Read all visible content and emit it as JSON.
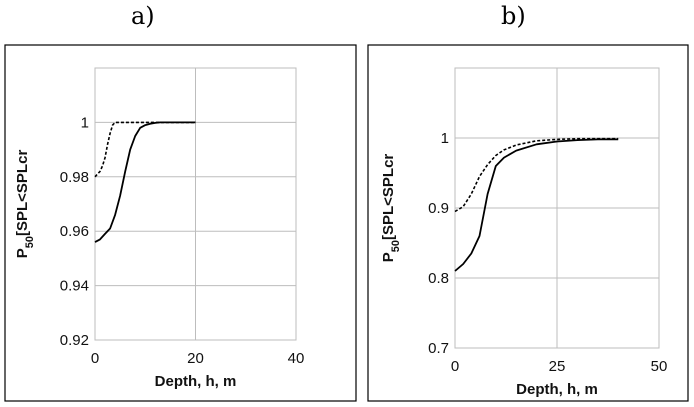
{
  "panels": [
    {
      "label": "a)"
    },
    {
      "label": "b)"
    }
  ],
  "chart_data": [
    {
      "type": "line",
      "xlabel": "Depth, h, m",
      "ylabel_prefix": "P",
      "ylabel_sub": "50",
      "ylabel_rest": "[SPL<SPLcr",
      "xlim": [
        0,
        40
      ],
      "ylim": [
        0.92,
        1.02
      ],
      "xticks": [
        0,
        20,
        40
      ],
      "yticks": [
        0.92,
        0.94,
        0.96,
        0.98,
        1
      ],
      "ytick_labels": [
        "0.92",
        "0.94",
        "0.96",
        "0.98",
        "1"
      ],
      "grid": true,
      "series": [
        {
          "style": "solid",
          "color": "#000000",
          "x": [
            0,
            1,
            2,
            3,
            4,
            5,
            6,
            7,
            8,
            9,
            10,
            11,
            12,
            13,
            14,
            15,
            16,
            17,
            18,
            19,
            20
          ],
          "y": [
            0.956,
            0.957,
            0.959,
            0.961,
            0.966,
            0.973,
            0.982,
            0.99,
            0.995,
            0.998,
            0.999,
            0.9995,
            0.9998,
            1.0,
            1.0,
            1.0,
            1.0,
            1.0,
            1.0,
            1.0,
            1.0
          ]
        },
        {
          "style": "dashed",
          "color": "#000000",
          "x": [
            0,
            0.5,
            1,
            1.5,
            2,
            2.5,
            3,
            3.5,
            4,
            5,
            6,
            8,
            10,
            12,
            14,
            16,
            18,
            20
          ],
          "y": [
            0.98,
            0.981,
            0.982,
            0.984,
            0.987,
            0.992,
            0.996,
            0.999,
            1.0,
            1.0,
            1.0,
            1.0,
            1.0,
            1.0,
            1.0,
            1.0,
            1.0,
            1.0
          ]
        }
      ]
    },
    {
      "type": "line",
      "xlabel": "Depth, h, m",
      "ylabel_prefix": "P",
      "ylabel_sub": "50",
      "ylabel_rest": "[SPL<SPLcr",
      "xlim": [
        0,
        50
      ],
      "ylim": [
        0.7,
        1.1
      ],
      "xticks": [
        0,
        25,
        50
      ],
      "yticks": [
        0.7,
        0.8,
        0.9,
        1
      ],
      "ytick_labels": [
        "0.7",
        "0.8",
        "0.9",
        "1"
      ],
      "grid": true,
      "series": [
        {
          "style": "solid",
          "color": "#000000",
          "x": [
            0,
            2,
            4,
            6,
            8,
            10,
            12,
            15,
            20,
            25,
            30,
            35,
            40
          ],
          "y": [
            0.81,
            0.82,
            0.835,
            0.86,
            0.92,
            0.96,
            0.972,
            0.982,
            0.991,
            0.995,
            0.997,
            0.998,
            0.998
          ]
        },
        {
          "style": "dashed",
          "color": "#000000",
          "x": [
            0,
            2,
            4,
            6,
            8,
            10,
            12,
            15,
            20,
            25,
            30,
            35,
            40
          ],
          "y": [
            0.895,
            0.902,
            0.92,
            0.945,
            0.962,
            0.975,
            0.983,
            0.99,
            0.996,
            0.998,
            0.999,
            0.999,
            0.999
          ]
        }
      ]
    }
  ]
}
